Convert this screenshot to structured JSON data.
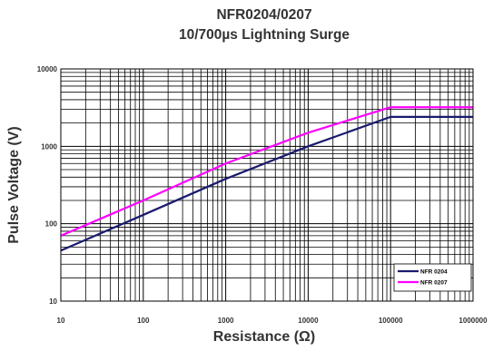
{
  "chart_data": {
    "type": "line",
    "title": "NFR0204/0207",
    "subtitle": "10/700µs Lightning Surge",
    "xlabel": "Resistance (Ω)",
    "ylabel": "Pulse Voltage (V)",
    "x_scale": "log",
    "y_scale": "log",
    "xlim": [
      10,
      1000000
    ],
    "ylim": [
      10,
      10000
    ],
    "x_ticks": [
      "10",
      "100",
      "1000",
      "10000",
      "100000",
      "1000000"
    ],
    "y_ticks": [
      "10",
      "100",
      "1000",
      "10000"
    ],
    "grid": true,
    "legend_position": "bottom-right",
    "series": [
      {
        "name": "NFR  0204",
        "color": "#1a1a6e",
        "x": [
          10,
          100,
          1000,
          10000,
          100000,
          1000000
        ],
        "y": [
          45,
          130,
          380,
          1000,
          2400,
          2400
        ]
      },
      {
        "name": "NFR  0207",
        "color": "#ff00ff",
        "x": [
          10,
          100,
          1000,
          10000,
          100000,
          1000000
        ],
        "y": [
          70,
          200,
          600,
          1500,
          3200,
          3200
        ]
      }
    ]
  }
}
